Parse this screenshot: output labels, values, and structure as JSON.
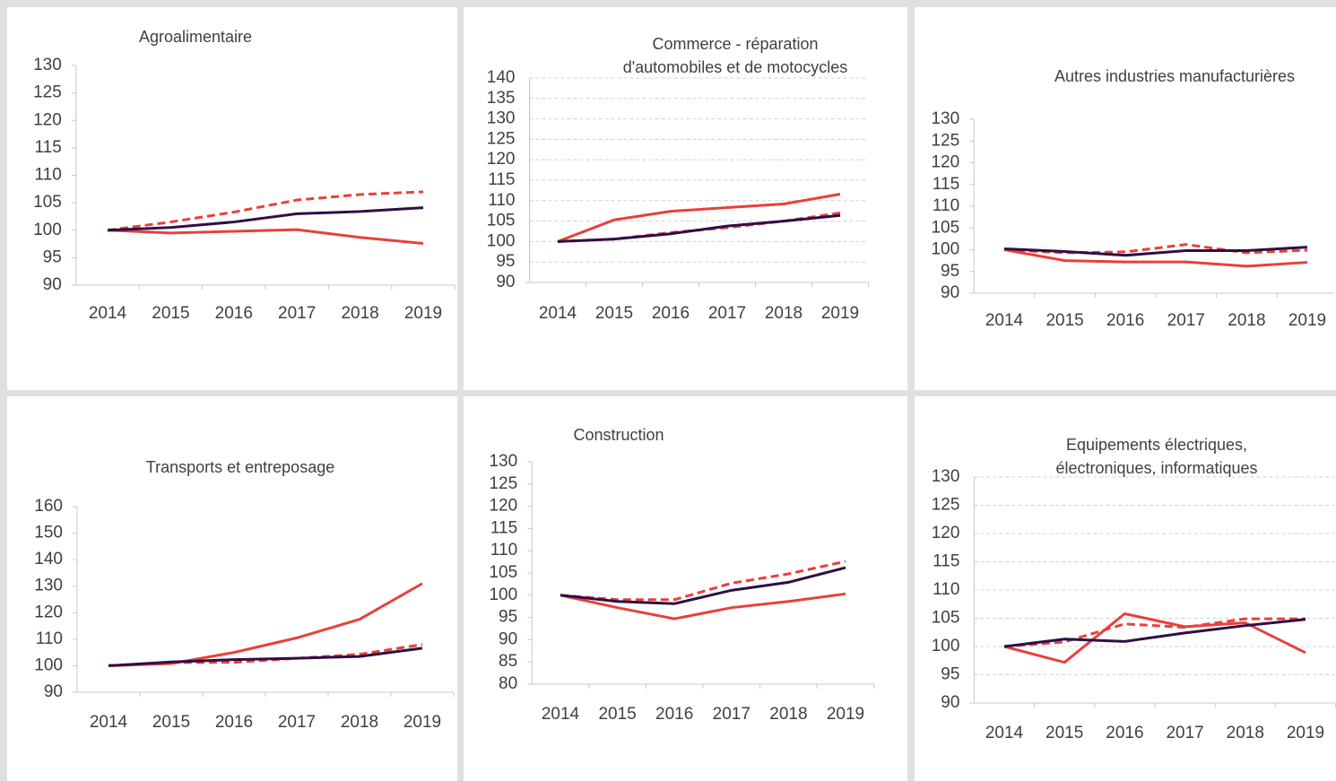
{
  "chart_data": [
    {
      "type": "line",
      "title": [
        "Agroalimentaire"
      ],
      "categories": [
        "2014",
        "2015",
        "2016",
        "2017",
        "2018",
        "2019"
      ],
      "ylim": [
        90,
        130
      ],
      "yticks": [
        90,
        95,
        100,
        105,
        110,
        115,
        120,
        125,
        130
      ],
      "grid": false,
      "series": [
        {
          "color": "#e8403a",
          "dash": false,
          "values": [
            100,
            99.5,
            99.8,
            100.1,
            98.7,
            97.6
          ]
        },
        {
          "color": "#e8403a",
          "dash": true,
          "values": [
            100,
            101.5,
            103.3,
            105.5,
            106.5,
            107
          ]
        },
        {
          "color": "#2e0f45",
          "dash": false,
          "values": [
            100,
            100.5,
            101.5,
            103,
            103.4,
            104.1
          ]
        }
      ]
    },
    {
      "type": "line",
      "title": [
        "Commerce -  réparation",
        "d'automobiles et de motocycles"
      ],
      "categories": [
        "2014",
        "2015",
        "2016",
        "2017",
        "2018",
        "2019"
      ],
      "ylim": [
        90,
        140
      ],
      "yticks": [
        90,
        95,
        100,
        105,
        110,
        115,
        120,
        125,
        130,
        135,
        140
      ],
      "grid": true,
      "series": [
        {
          "color": "#e8403a",
          "dash": false,
          "values": [
            100,
            105.3,
            107.4,
            108.3,
            109.2,
            111.6
          ]
        },
        {
          "color": "#e8403a",
          "dash": true,
          "values": [
            100,
            100.6,
            102.2,
            103.4,
            105,
            107
          ]
        },
        {
          "color": "#2e0f45",
          "dash": false,
          "values": [
            100,
            100.6,
            101.9,
            103.8,
            105,
            106.4
          ]
        }
      ]
    },
    {
      "type": "line",
      "title": [
        "Autres industries manufacturières"
      ],
      "categories": [
        "2014",
        "2015",
        "2016",
        "2017",
        "2018",
        "2019"
      ],
      "ylim": [
        90,
        130
      ],
      "yticks": [
        90,
        95,
        100,
        105,
        110,
        115,
        120,
        125,
        130
      ],
      "grid": false,
      "series": [
        {
          "color": "#e8403a",
          "dash": false,
          "values": [
            100,
            97.5,
            97.2,
            97.2,
            96.2,
            97.1
          ]
        },
        {
          "color": "#e8403a",
          "dash": true,
          "values": [
            100,
            99.3,
            99.5,
            101.2,
            99.3,
            99.9
          ]
        },
        {
          "color": "#2e0f45",
          "dash": false,
          "values": [
            100.2,
            99.6,
            98.7,
            99.8,
            99.8,
            100.6
          ]
        }
      ]
    },
    {
      "type": "line",
      "title": [
        "Transports et entreposage"
      ],
      "categories": [
        "2014",
        "2015",
        "2016",
        "2017",
        "2018",
        "2019"
      ],
      "ylim": [
        90,
        160
      ],
      "yticks": [
        90,
        100,
        110,
        120,
        130,
        140,
        150,
        160
      ],
      "grid": false,
      "series": [
        {
          "color": "#e8403a",
          "dash": false,
          "values": [
            100,
            100.8,
            105,
            110.5,
            117.5,
            131
          ]
        },
        {
          "color": "#e8403a",
          "dash": true,
          "values": [
            100,
            101.2,
            101.3,
            102.8,
            104.3,
            108
          ]
        },
        {
          "color": "#2e0f45",
          "dash": false,
          "values": [
            100,
            101.4,
            102.3,
            102.8,
            103.5,
            106.6
          ]
        }
      ]
    },
    {
      "type": "line",
      "title": [
        "Construction"
      ],
      "categories": [
        "2014",
        "2015",
        "2016",
        "2017",
        "2018",
        "2019"
      ],
      "ylim": [
        80,
        130
      ],
      "yticks": [
        80,
        85,
        90,
        95,
        100,
        105,
        110,
        115,
        120,
        125,
        130
      ],
      "grid": false,
      "series": [
        {
          "color": "#e8403a",
          "dash": false,
          "values": [
            100,
            97.2,
            94.7,
            97.2,
            98.6,
            100.3
          ]
        },
        {
          "color": "#e8403a",
          "dash": true,
          "values": [
            100,
            99,
            99,
            102.7,
            104.8,
            107.6
          ]
        },
        {
          "color": "#2e0f45",
          "dash": false,
          "values": [
            100,
            98.6,
            98.1,
            101.1,
            102.9,
            106.2
          ]
        }
      ]
    },
    {
      "type": "line",
      "title": [
        "Equipements électriques,",
        "électroniques, informatiques"
      ],
      "categories": [
        "2014",
        "2015",
        "2016",
        "2017",
        "2018",
        "2019"
      ],
      "ylim": [
        90,
        130
      ],
      "yticks": [
        90,
        95,
        100,
        105,
        110,
        115,
        120,
        125,
        130
      ],
      "grid": true,
      "series": [
        {
          "color": "#e8403a",
          "dash": false,
          "values": [
            100,
            97.2,
            105.8,
            103.5,
            104.2,
            98.9
          ]
        },
        {
          "color": "#e8403a",
          "dash": true,
          "values": [
            100,
            100.8,
            104,
            103.4,
            104.9,
            104.9
          ]
        },
        {
          "color": "#2e0f45",
          "dash": false,
          "values": [
            100,
            101.3,
            100.9,
            102.4,
            103.7,
            104.8
          ]
        }
      ]
    }
  ]
}
